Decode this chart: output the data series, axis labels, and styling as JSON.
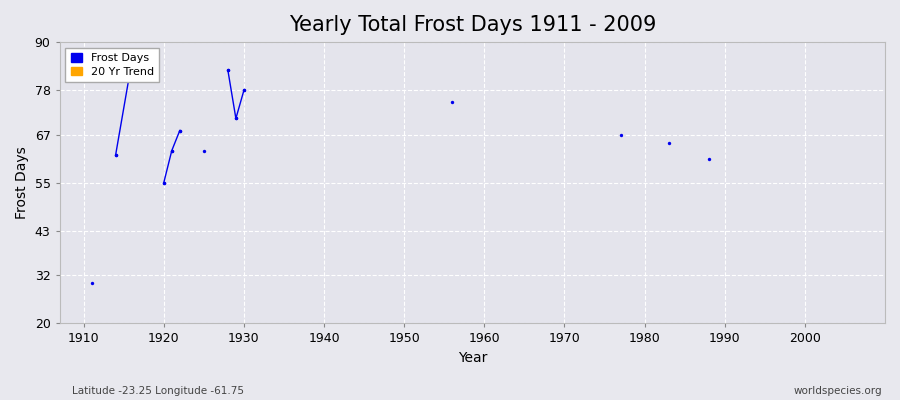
{
  "title": "Yearly Total Frost Days 1911 - 2009",
  "xlabel": "Year",
  "ylabel": "Frost Days",
  "subtitle": "Latitude -23.25 Longitude -61.75",
  "watermark": "worldspecies.org",
  "ylim": [
    20,
    90
  ],
  "xlim": [
    1907,
    2010
  ],
  "yticks": [
    20,
    32,
    43,
    55,
    67,
    78,
    90
  ],
  "xticks": [
    1910,
    1920,
    1930,
    1940,
    1950,
    1960,
    1970,
    1980,
    1990,
    2000
  ],
  "data_points": [
    {
      "year": 1911,
      "value": 30
    },
    {
      "year": 1914,
      "value": 62
    },
    {
      "year": 1916,
      "value": 85
    },
    {
      "year": 1920,
      "value": 55
    },
    {
      "year": 1921,
      "value": 63
    },
    {
      "year": 1922,
      "value": 68
    },
    {
      "year": 1925,
      "value": 63
    },
    {
      "year": 1928,
      "value": 83
    },
    {
      "year": 1929,
      "value": 71
    },
    {
      "year": 1930,
      "value": 78
    },
    {
      "year": 1956,
      "value": 75
    },
    {
      "year": 1977,
      "value": 67
    },
    {
      "year": 1983,
      "value": 65
    },
    {
      "year": 1988,
      "value": 61
    }
  ],
  "line_groups": [
    [
      {
        "year": 1914,
        "value": 62
      },
      {
        "year": 1916,
        "value": 85
      }
    ],
    [
      {
        "year": 1920,
        "value": 55
      },
      {
        "year": 1921,
        "value": 63
      },
      {
        "year": 1922,
        "value": 68
      }
    ],
    [
      {
        "year": 1928,
        "value": 83
      },
      {
        "year": 1929,
        "value": 71
      },
      {
        "year": 1930,
        "value": 78
      }
    ]
  ],
  "point_color": "#0000EE",
  "line_color": "#0000EE",
  "fig_bg_color": "#e8e8ee",
  "plot_bg_color": "#e4e4ec",
  "legend_frost_color": "#0000EE",
  "legend_trend_color": "#FFA500",
  "title_fontsize": 15,
  "axis_label_fontsize": 10,
  "tick_fontsize": 9
}
